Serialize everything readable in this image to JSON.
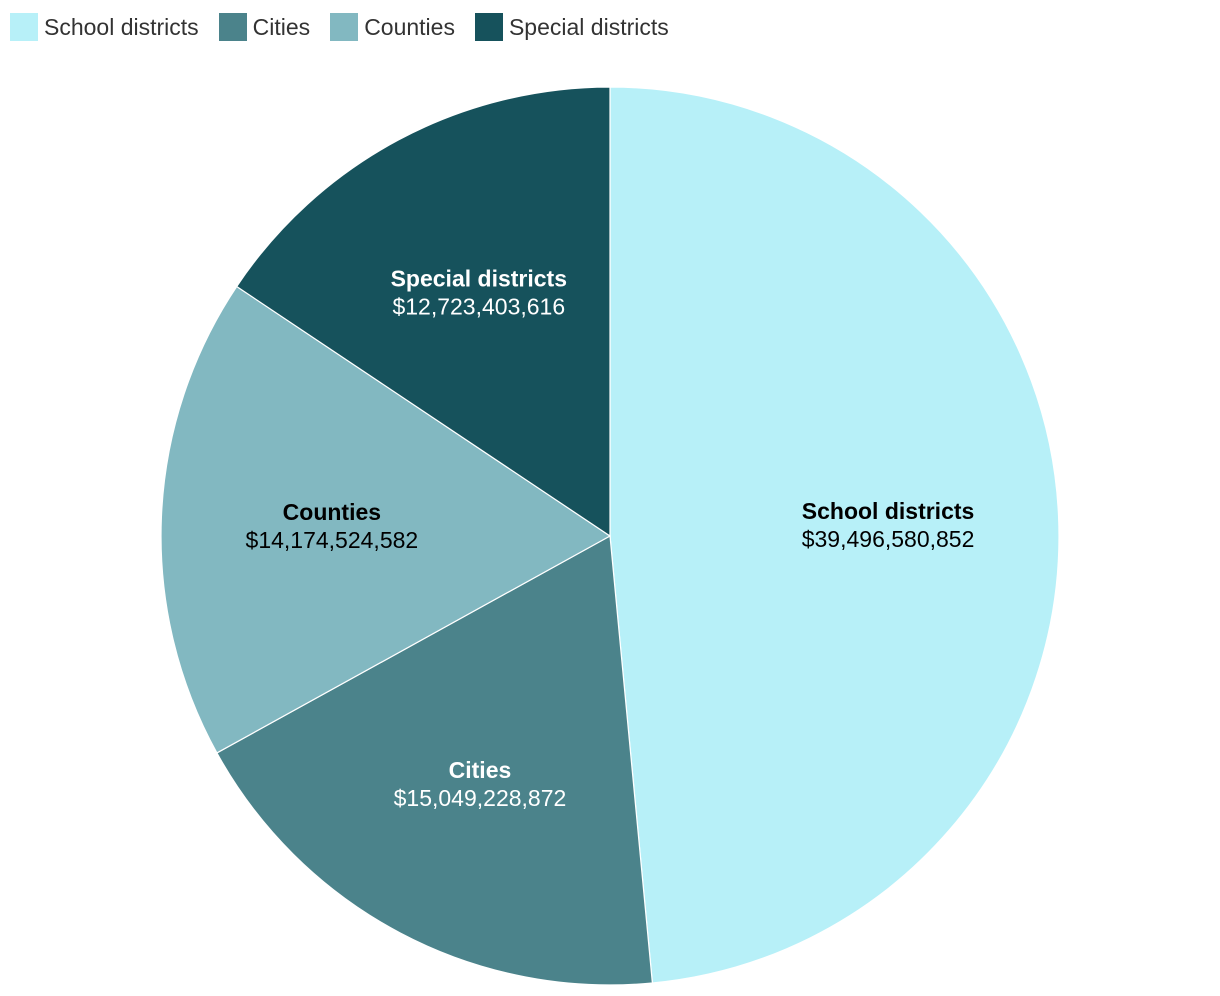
{
  "chart_data": {
    "type": "pie",
    "legend_position": "top-left",
    "slices": [
      {
        "label": "School districts",
        "value": 39496580852,
        "value_label": "$39,496,580,852",
        "color": "#b7f0f8",
        "text_color": "#000000"
      },
      {
        "label": "Cities",
        "value": 15049228872,
        "value_label": "$15,049,228,872",
        "color": "#4b838b",
        "text_color": "#ffffff"
      },
      {
        "label": "Counties",
        "value": 14174524582,
        "value_label": "$14,174,524,582",
        "color": "#82b8c1",
        "text_color": "#000000"
      },
      {
        "label": "Special districts",
        "value": 12723403616,
        "value_label": "$12,723,403,616",
        "color": "#16525c",
        "text_color": "#ffffff"
      }
    ]
  }
}
